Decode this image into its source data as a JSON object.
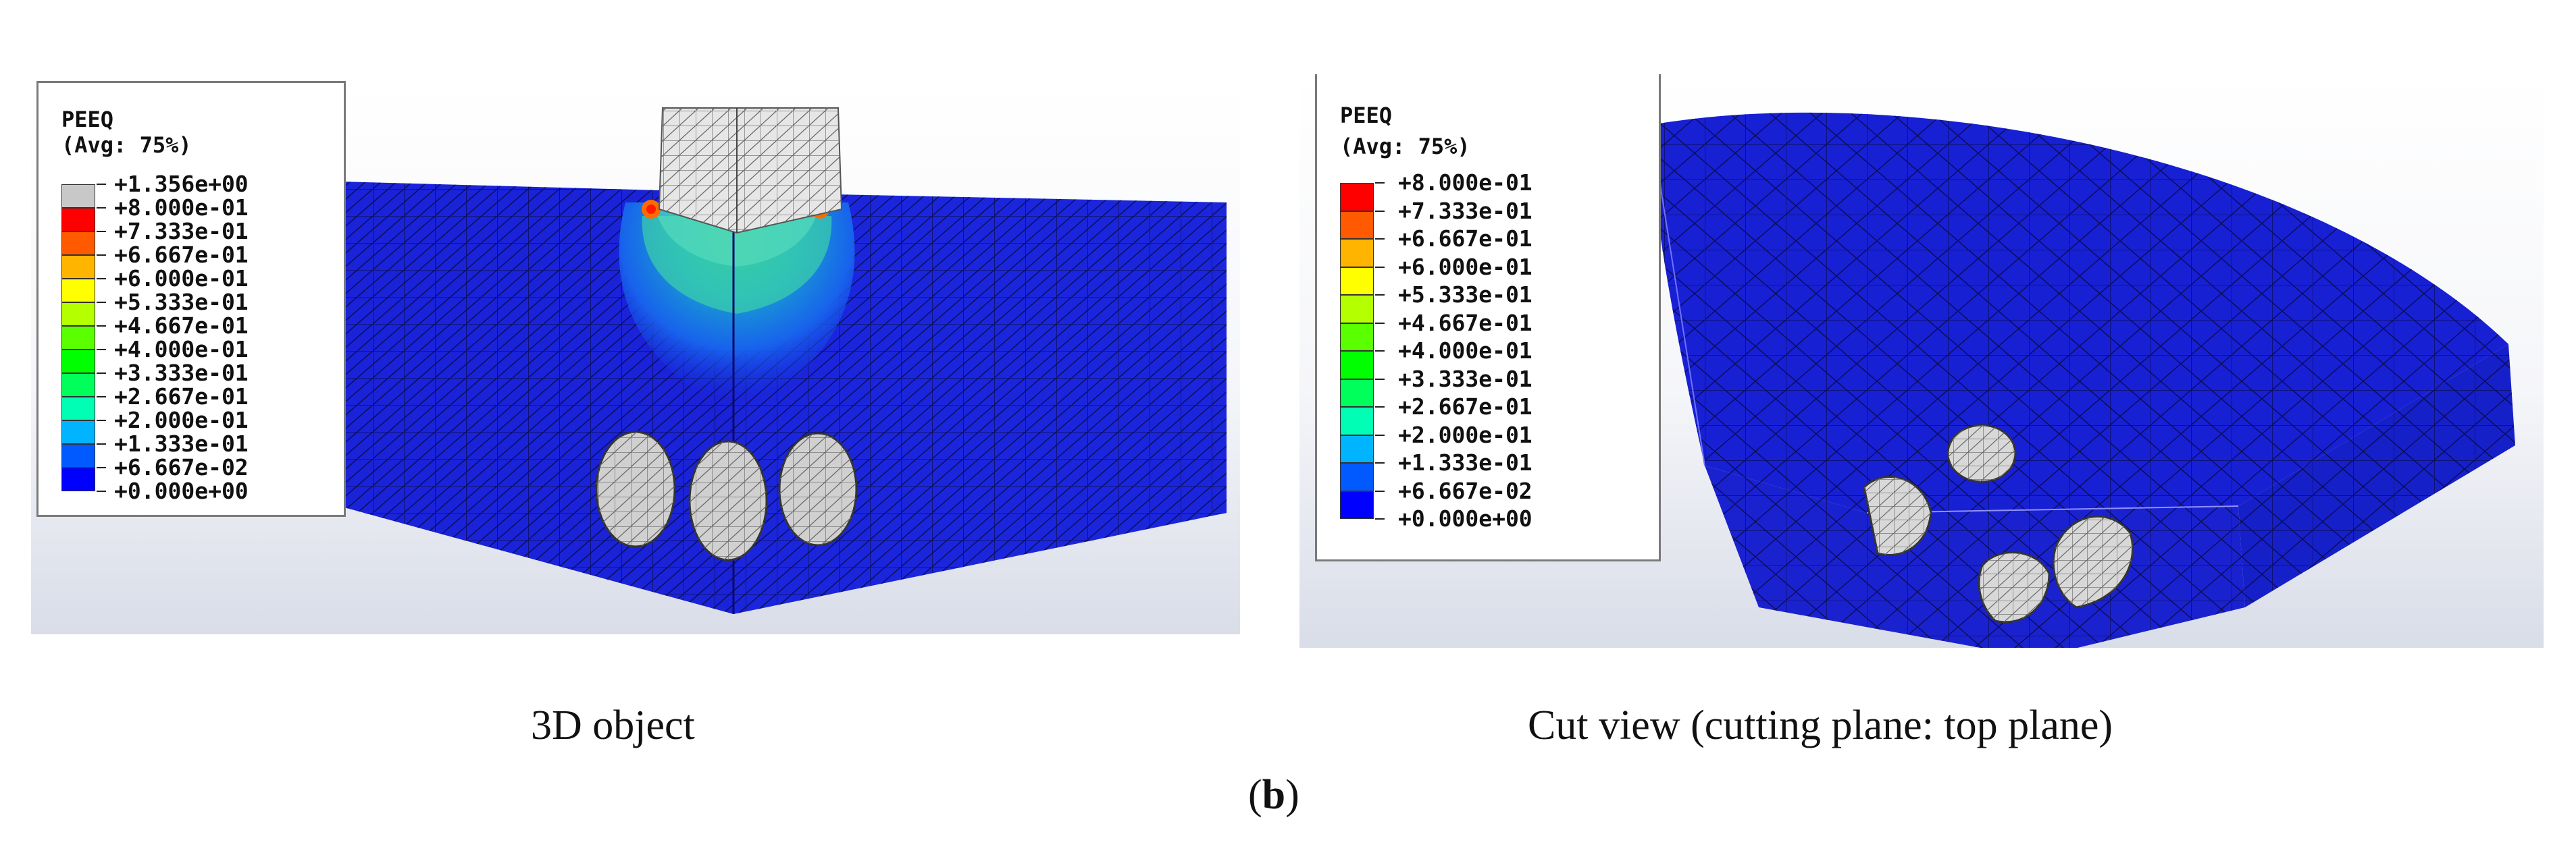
{
  "panels": [
    {
      "legend": {
        "title": "PEEQ",
        "subtitle": "(Avg: 75%)",
        "labels": [
          "+1.356e+00",
          "+8.000e-01",
          "+7.333e-01",
          "+6.667e-01",
          "+6.000e-01",
          "+5.333e-01",
          "+4.667e-01",
          "+4.000e-01",
          "+3.333e-01",
          "+2.667e-01",
          "+2.000e-01",
          "+1.333e-01",
          "+6.667e-02",
          "+0.000e+00"
        ],
        "colors": [
          "#c8c8c8",
          "#ff0000",
          "#ff5a00",
          "#ffb400",
          "#ffff00",
          "#b4ff00",
          "#5aff00",
          "#00ff00",
          "#00ff5a",
          "#00ffb4",
          "#00b4ff",
          "#005aff",
          "#0000ff"
        ]
      },
      "caption": "3D object"
    },
    {
      "legend": {
        "title": "PEEQ",
        "subtitle": "(Avg: 75%)",
        "labels": [
          "+8.000e-01",
          "+7.333e-01",
          "+6.667e-01",
          "+6.000e-01",
          "+5.333e-01",
          "+4.667e-01",
          "+4.000e-01",
          "+3.333e-01",
          "+2.667e-01",
          "+2.000e-01",
          "+1.333e-01",
          "+6.667e-02",
          "+0.000e+00"
        ],
        "colors": [
          "#ff0000",
          "#ff5a00",
          "#ffb400",
          "#ffff00",
          "#b4ff00",
          "#5aff00",
          "#00ff00",
          "#00ff5a",
          "#00ffb4",
          "#00b4ff",
          "#005aff",
          "#0000ff"
        ]
      },
      "caption": "Cut view (cutting plane: top plane)"
    }
  ],
  "figure_label": {
    "open": "(",
    "letter": "b",
    "close": ")"
  }
}
